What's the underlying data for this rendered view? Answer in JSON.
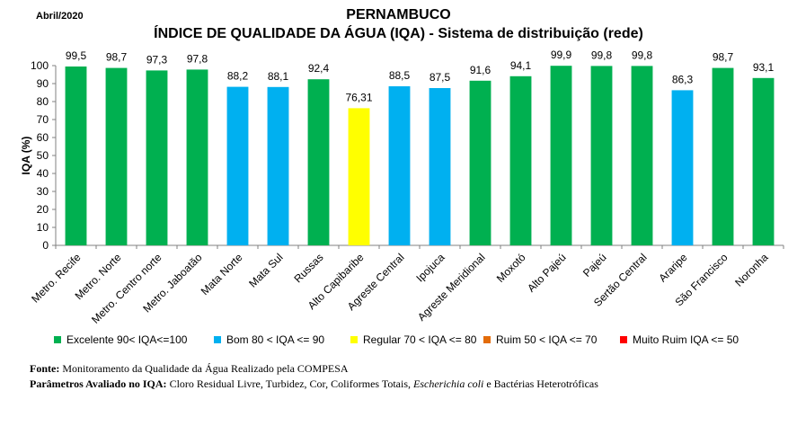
{
  "header": {
    "date": "Abril/2020",
    "title_line1": "PERNAMBUCO",
    "title_line2": "ÍNDICE DE QUALIDADE DA ÁGUA (IQA) - Sistema de distribuição (rede)"
  },
  "chart_data": {
    "type": "bar",
    "ylabel": "IQA (%)",
    "ylim": [
      0,
      100
    ],
    "yticks": [
      0,
      10,
      20,
      30,
      40,
      50,
      60,
      70,
      80,
      90,
      100
    ],
    "categories": [
      "Metro. Recife",
      "Metro. Norte",
      "Metro. Centro norte",
      "Metro. Jaboatão",
      "Mata Norte",
      "Mata Sul",
      "Russas",
      "Alto Capibaribe",
      "Agreste Central",
      "Ipojuca",
      "Agreste Meridional",
      "Moxotó",
      "Alto Pajeú",
      "Pajeú",
      "Sertão Central",
      "Araripe",
      "São Francisco",
      "Noronha"
    ],
    "values": [
      99.5,
      98.7,
      97.3,
      97.8,
      88.2,
      88.1,
      92.4,
      76.31,
      88.5,
      87.5,
      91.6,
      94.1,
      99.9,
      99.8,
      99.8,
      86.3,
      98.7,
      93.1
    ],
    "value_labels": [
      "99,5",
      "98,7",
      "97,3",
      "97,8",
      "88,2",
      "88,1",
      "92,4",
      "76,31",
      "88,5",
      "87,5",
      "91,6",
      "94,1",
      "99,9",
      "99,8",
      "99,8",
      "86,3",
      "98,7",
      "93,1"
    ],
    "colors": {
      "excelente": "#00b050",
      "bom": "#00b0f0",
      "regular": "#ffff00",
      "ruim": "#e36c09",
      "muito_ruim": "#ff0000"
    },
    "legend": [
      {
        "label": "Excelente  90< IQA<=100",
        "color": "#00b050"
      },
      {
        "label": "Bom 80 < IQA <= 90",
        "color": "#00b0f0"
      },
      {
        "label": "Regular 70 < IQA <= 80",
        "color": "#ffff00"
      },
      {
        "label": "Ruim 50 < IQA <= 70",
        "color": "#e36c09"
      },
      {
        "label": "Muito Ruim IQA <= 50",
        "color": "#ff0000"
      }
    ],
    "legend_position": "bottom"
  },
  "footer": {
    "fonte_label": "Fonte:",
    "fonte_text": " Monitoramento da Qualidade da Água Realizado pela COMPESA",
    "params_label": "Parâmetros Avaliado no IQA:",
    "params_text": " Cloro Residual Livre, Turbidez, Cor, Coliformes Totais, ",
    "params_italic": "Escherichia coli",
    "params_tail": " e Bactérias Heterotróficas"
  }
}
